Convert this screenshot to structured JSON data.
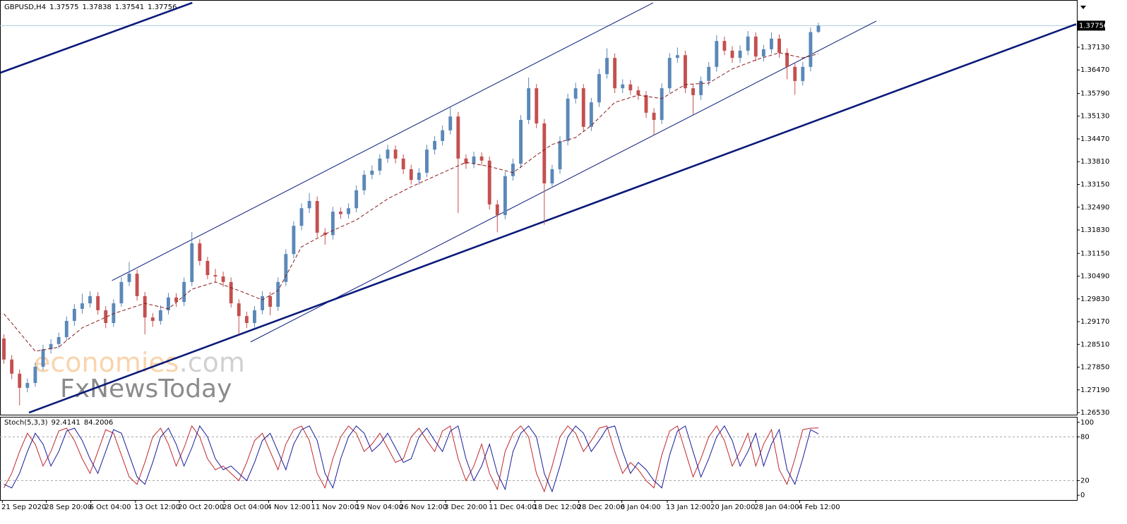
{
  "chart_data": [
    {
      "type": "candlestick",
      "symbol": "GBPUSD,H4",
      "up_color": "#5b88b8",
      "down_color": "#c4504f",
      "xlim": [
        -0.5,
        137
      ],
      "ylim": [
        1.2647,
        1.385
      ],
      "open": [
        1.2868,
        1.2807,
        1.2766,
        1.2725,
        1.2739,
        1.2786,
        1.2837,
        1.2852,
        1.2872,
        1.2919,
        1.2954,
        1.297,
        1.2991,
        1.295,
        1.2913,
        1.297,
        1.3032,
        1.3056,
        1.2991,
        1.2929,
        1.2919,
        1.295,
        1.2987,
        1.2974,
        1.3032,
        1.3144,
        1.3093,
        1.3052,
        1.3048,
        1.3032,
        1.297,
        1.2933,
        1.2913,
        1.295,
        1.2991,
        1.296,
        1.3032,
        1.3113,
        1.3195,
        1.3246,
        1.3267,
        1.3175,
        1.3168,
        1.3236,
        1.3229,
        1.3246,
        1.3298,
        1.3343,
        1.3355,
        1.339,
        1.3416,
        1.339,
        1.3359,
        1.3328,
        1.3349,
        1.3416,
        1.3441,
        1.3472,
        1.3512,
        1.339,
        1.3375,
        1.3396,
        1.3384,
        1.3257,
        1.3226,
        1.3339,
        1.3375,
        1.3502,
        1.3594,
        1.3492,
        1.3318,
        1.3359,
        1.3441,
        1.3564,
        1.3594,
        1.3482,
        1.3553,
        1.3635,
        1.3682,
        1.3594,
        1.3605,
        1.3588,
        1.3574,
        1.3523,
        1.3502,
        1.3594,
        1.3682,
        1.369,
        1.3594,
        1.3574,
        1.3615,
        1.3656,
        1.3731,
        1.3703,
        1.3682,
        1.3703,
        1.3744,
        1.3686,
        1.3707,
        1.3738,
        1.3697,
        1.3656,
        1.3615,
        1.3656,
        1.37575
      ],
      "high": [
        1.288,
        1.282,
        1.2778,
        1.2752,
        1.2798,
        1.285,
        1.2866,
        1.2885,
        1.2932,
        1.2968,
        1.2998,
        1.3005,
        1.3002,
        1.2962,
        1.2982,
        1.3046,
        1.309,
        1.3068,
        1.3003,
        1.2942,
        1.2964,
        1.3,
        1.2999,
        1.3045,
        1.3177,
        1.3156,
        1.3105,
        1.307,
        1.3062,
        1.3045,
        1.2982,
        1.2946,
        1.2962,
        1.3005,
        1.3003,
        1.3045,
        1.3127,
        1.3208,
        1.326,
        1.329,
        1.328,
        1.3188,
        1.325,
        1.3248,
        1.326,
        1.3312,
        1.3356,
        1.337,
        1.3403,
        1.343,
        1.3428,
        1.3402,
        1.3372,
        1.3362,
        1.343,
        1.3455,
        1.3486,
        1.3542,
        1.3525,
        1.3402,
        1.341,
        1.3408,
        1.3396,
        1.327,
        1.3352,
        1.339,
        1.3516,
        1.3625,
        1.3606,
        1.3505,
        1.3372,
        1.3455,
        1.3578,
        1.361,
        1.3606,
        1.3566,
        1.365,
        1.371,
        1.3695,
        1.362,
        1.3618,
        1.36,
        1.3586,
        1.3536,
        1.3608,
        1.3696,
        1.3712,
        1.3703,
        1.3607,
        1.3628,
        1.367,
        1.3748,
        1.3744,
        1.3716,
        1.3718,
        1.376,
        1.3756,
        1.372,
        1.3756,
        1.375,
        1.371,
        1.3668,
        1.367,
        1.377,
        1.37838
      ],
      "low": [
        1.2795,
        1.275,
        1.2674,
        1.2712,
        1.2728,
        1.2775,
        1.2824,
        1.284,
        1.2862,
        1.2905,
        1.294,
        1.2958,
        1.2938,
        1.2898,
        1.2902,
        1.296,
        1.302,
        1.2978,
        1.288,
        1.2902,
        1.2908,
        1.2938,
        1.296,
        1.2962,
        1.302,
        1.308,
        1.304,
        1.303,
        1.3018,
        1.2958,
        1.288,
        1.2898,
        1.29,
        1.2938,
        1.2935,
        1.2948,
        1.302,
        1.31,
        1.3182,
        1.3232,
        1.3162,
        1.314,
        1.3155,
        1.3215,
        1.3216,
        1.3234,
        1.3285,
        1.333,
        1.3342,
        1.3378,
        1.3376,
        1.3345,
        1.3315,
        1.3314,
        1.3336,
        1.3402,
        1.3428,
        1.346,
        1.3232,
        1.336,
        1.3362,
        1.337,
        1.3242,
        1.3176,
        1.3214,
        1.3326,
        1.3362,
        1.349,
        1.3478,
        1.3198,
        1.3305,
        1.3346,
        1.3428,
        1.355,
        1.3468,
        1.347,
        1.354,
        1.3622,
        1.358,
        1.358,
        1.3575,
        1.356,
        1.3508,
        1.3458,
        1.349,
        1.358,
        1.3668,
        1.358,
        1.3518,
        1.356,
        1.3602,
        1.3642,
        1.369,
        1.3668,
        1.3668,
        1.369,
        1.3672,
        1.3672,
        1.3694,
        1.3682,
        1.362,
        1.3575,
        1.3602,
        1.3643,
        1.37541
      ],
      "close": [
        1.2807,
        1.2766,
        1.2725,
        1.2739,
        1.2786,
        1.2837,
        1.2852,
        1.2872,
        1.2919,
        1.2954,
        1.297,
        1.2991,
        1.295,
        1.2913,
        1.297,
        1.3032,
        1.3056,
        1.2991,
        1.2929,
        1.2919,
        1.295,
        1.2987,
        1.2974,
        1.3032,
        1.3144,
        1.3093,
        1.3052,
        1.3048,
        1.3032,
        1.297,
        1.2933,
        1.2913,
        1.295,
        1.2991,
        1.296,
        1.3032,
        1.3113,
        1.3195,
        1.3246,
        1.3267,
        1.3175,
        1.3168,
        1.3236,
        1.3229,
        1.3246,
        1.3298,
        1.3343,
        1.3355,
        1.339,
        1.3416,
        1.339,
        1.3359,
        1.3328,
        1.3349,
        1.3416,
        1.3441,
        1.3472,
        1.3512,
        1.339,
        1.3375,
        1.3396,
        1.3384,
        1.3257,
        1.3226,
        1.3339,
        1.3375,
        1.3502,
        1.3594,
        1.3492,
        1.3318,
        1.3359,
        1.3441,
        1.3564,
        1.3594,
        1.3482,
        1.3553,
        1.3635,
        1.3682,
        1.3594,
        1.3605,
        1.3588,
        1.3574,
        1.3523,
        1.3502,
        1.3594,
        1.3682,
        1.369,
        1.3594,
        1.3574,
        1.3615,
        1.3656,
        1.3731,
        1.3703,
        1.3682,
        1.3703,
        1.3744,
        1.3686,
        1.3707,
        1.3738,
        1.3697,
        1.3656,
        1.3615,
        1.3656,
        1.3757,
        1.37756
      ],
      "ma": {
        "color": "#8b1a1a",
        "x": [
          0,
          4,
          7,
          10,
          14,
          18,
          21,
          24,
          27,
          30,
          33,
          35,
          38,
          41,
          45,
          49,
          52,
          56,
          59,
          62,
          65,
          68,
          70,
          73,
          75,
          78,
          81,
          84,
          87,
          90,
          93,
          96,
          99,
          102,
          104
        ],
        "values": [
          1.294,
          1.2831,
          1.2843,
          1.2899,
          1.294,
          1.297,
          1.2954,
          1.3011,
          1.3032,
          1.3007,
          1.298,
          1.3007,
          1.3134,
          1.3171,
          1.3212,
          1.3273,
          1.3308,
          1.3349,
          1.3379,
          1.3367,
          1.3349,
          1.34,
          1.3431,
          1.3451,
          1.3486,
          1.3553,
          1.3574,
          1.3564,
          1.3605,
          1.3609,
          1.365,
          1.3676,
          1.3697,
          1.3682,
          1.3694
        ]
      },
      "trendlines": [
        {
          "x": [
            -0.45,
            24.05
          ],
          "y": [
            1.3639,
            1.3842
          ],
          "color": "#0a1a7a",
          "bold": true
        },
        {
          "x": [
            3.2,
            136.9
          ],
          "y": [
            1.2653,
            1.378
          ],
          "color": "#0a1a7a",
          "bold": true
        },
        {
          "x": [
            13.8,
            82.9
          ],
          "y": [
            1.3036,
            1.3842
          ],
          "color": "#0a1a7a",
          "bold": false
        },
        {
          "x": [
            31.5,
            111.4
          ],
          "y": [
            1.2858,
            1.3789
          ],
          "color": "#0a1a7a",
          "bold": false
        }
      ],
      "yticks": [
        {
          "value": 1.3713,
          "label": "1.37130"
        },
        {
          "value": 1.3647,
          "label": "1.36470"
        },
        {
          "value": 1.3579,
          "label": "1.35790"
        },
        {
          "value": 1.3513,
          "label": "1.35130"
        },
        {
          "value": 1.3447,
          "label": "1.34470"
        },
        {
          "value": 1.3381,
          "label": "1.33810"
        },
        {
          "value": 1.3315,
          "label": "1.33150"
        },
        {
          "value": 1.3249,
          "label": "1.32490"
        },
        {
          "value": 1.3183,
          "label": "1.31830"
        },
        {
          "value": 1.3115,
          "label": "1.31150"
        },
        {
          "value": 1.3049,
          "label": "1.30490"
        },
        {
          "value": 1.2983,
          "label": "1.29830"
        },
        {
          "value": 1.2917,
          "label": "1.29170"
        },
        {
          "value": 1.2851,
          "label": "1.28510"
        },
        {
          "value": 1.2785,
          "label": "1.27850"
        },
        {
          "value": 1.2719,
          "label": "1.27190"
        },
        {
          "value": 1.2653,
          "label": "1.26530"
        }
      ],
      "watermark": {
        "brand": "economies",
        "domain": ".com",
        "sub": "FxNewsToday"
      }
    },
    {
      "type": "oscillator",
      "title": "Stoch(5,3,3)",
      "xlim": [
        -0.5,
        137
      ],
      "ylim": [
        -6.6,
        106.6
      ],
      "yticks": [
        100,
        80,
        20,
        0
      ],
      "levels": [
        80,
        20
      ],
      "series": [
        {
          "color": "#c0282d",
          "values": [
            10,
            30,
            60,
            85,
            70,
            40,
            60,
            88,
            92,
            75,
            50,
            30,
            60,
            90,
            85,
            55,
            25,
            15,
            45,
            80,
            92,
            70,
            40,
            65,
            95,
            80,
            50,
            35,
            40,
            30,
            20,
            45,
            75,
            85,
            60,
            35,
            70,
            90,
            95,
            75,
            30,
            10,
            50,
            80,
            95,
            85,
            60,
            70,
            85,
            65,
            45,
            50,
            80,
            92,
            75,
            60,
            88,
            95,
            50,
            20,
            40,
            70,
            30,
            8,
            60,
            85,
            95,
            80,
            30,
            5,
            40,
            80,
            95,
            85,
            60,
            75,
            92,
            95,
            60,
            30,
            45,
            35,
            20,
            10,
            55,
            88,
            95,
            60,
            25,
            50,
            80,
            95,
            75,
            40,
            60,
            85,
            40,
            70,
            90,
            35,
            15,
            50,
            90,
            92,
            92.4141
          ]
        },
        {
          "color": "#1a1a9c",
          "values": [
            15,
            10,
            30,
            60,
            85,
            70,
            40,
            60,
            88,
            92,
            75,
            50,
            30,
            60,
            90,
            85,
            55,
            25,
            15,
            45,
            80,
            92,
            70,
            40,
            65,
            95,
            80,
            50,
            35,
            40,
            30,
            20,
            45,
            75,
            85,
            60,
            35,
            70,
            90,
            95,
            75,
            30,
            10,
            50,
            80,
            95,
            85,
            60,
            70,
            85,
            65,
            45,
            50,
            80,
            92,
            75,
            60,
            88,
            95,
            50,
            20,
            40,
            70,
            30,
            8,
            60,
            85,
            95,
            80,
            30,
            5,
            40,
            80,
            95,
            85,
            60,
            75,
            92,
            95,
            60,
            30,
            45,
            35,
            20,
            10,
            55,
            88,
            95,
            60,
            25,
            50,
            80,
            95,
            75,
            40,
            60,
            85,
            40,
            70,
            90,
            35,
            15,
            50,
            90,
            84.2006
          ]
        }
      ],
      "xticks": [
        {
          "value": -0.2,
          "label": "21 Sep 2020"
        },
        {
          "value": 5.4,
          "label": "28 Sep 20:00"
        },
        {
          "value": 11.1,
          "label": "6 Oct 04:00"
        },
        {
          "value": 16.8,
          "label": "13 Oct 12:00"
        },
        {
          "value": 22.4,
          "label": "20 Oct 20:00"
        },
        {
          "value": 28.1,
          "label": "28 Oct 04:00"
        },
        {
          "value": 33.8,
          "label": "4 Nov 12:00"
        },
        {
          "value": 39.4,
          "label": "11 Nov 20:00"
        },
        {
          "value": 45.1,
          "label": "19 Nov 04:00"
        },
        {
          "value": 50.7,
          "label": "26 Nov 12:00"
        },
        {
          "value": 56.4,
          "label": "3 Dec 20:00"
        },
        {
          "value": 62.1,
          "label": "11 Dec 04:00"
        },
        {
          "value": 67.8,
          "label": "18 Dec 12:00"
        },
        {
          "value": 73.4,
          "label": "28 Dec 20:00"
        },
        {
          "value": 78.9,
          "label": "6 Jan 04:00"
        },
        {
          "value": 84.7,
          "label": "13 Jan 12:00"
        },
        {
          "value": 90.4,
          "label": "20 Jan 20:00"
        },
        {
          "value": 96.0,
          "label": "28 Jan 04:00"
        },
        {
          "value": 101.6,
          "label": "4 Feb 12:00"
        }
      ]
    }
  ]
}
